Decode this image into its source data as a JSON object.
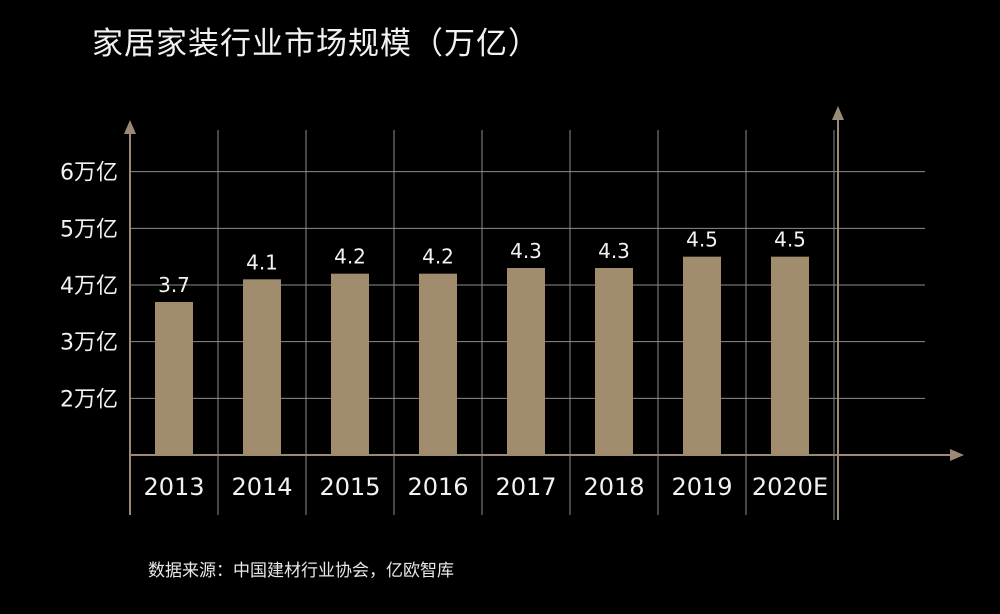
{
  "title": "家居家装行业市场规模（万亿）",
  "source": "数据来源：中国建材行业协会，亿欧智库",
  "colors": {
    "background": "#000000",
    "bar": "#a18d6e",
    "axis": "#9a8a75",
    "grid": "#8c8c8c",
    "text": "#f2f2f2"
  },
  "chart_data": {
    "type": "bar",
    "title": "家居家装行业市场规模（万亿）",
    "categories": [
      "2013",
      "2014",
      "2015",
      "2016",
      "2017",
      "2018",
      "2019",
      "2020E"
    ],
    "values": [
      3.7,
      4.1,
      4.2,
      4.2,
      4.3,
      4.3,
      4.5,
      4.5
    ],
    "data_labels": [
      "3.7",
      "4.1",
      "4.2",
      "4.2",
      "4.3",
      "4.3",
      "4.5",
      "4.5"
    ],
    "y_ticks": [
      {
        "value": 2,
        "label": "2万亿"
      },
      {
        "value": 3,
        "label": "3万亿"
      },
      {
        "value": 4,
        "label": "4万亿"
      },
      {
        "value": 5,
        "label": "5万亿"
      },
      {
        "value": 6,
        "label": "6万亿"
      }
    ],
    "ylim": [
      1,
      7
    ],
    "grid": true,
    "legend": "none"
  }
}
